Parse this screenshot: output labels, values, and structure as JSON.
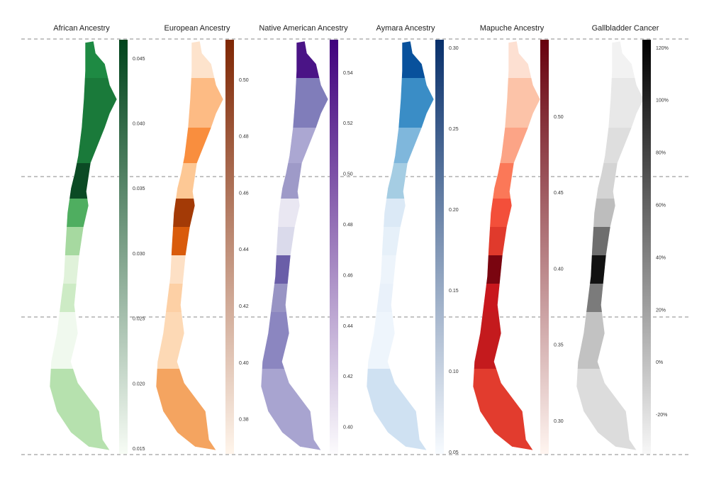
{
  "panels": [
    {
      "title": "African Ancestry",
      "ticks": [
        "0.045",
        "0.040",
        "0.035",
        "0.030",
        "0.025",
        "0.020",
        "0.015"
      ]
    },
    {
      "title": "European Ancestry",
      "ticks": [
        "0.50",
        "0.48",
        "0.46",
        "0.44",
        "0.42",
        "0.40",
        "0.38"
      ]
    },
    {
      "title": "Native American Ancestry",
      "ticks": [
        "0.54",
        "0.52",
        "0.50",
        "0.48",
        "0.46",
        "0.44",
        "0.42",
        "0.40"
      ]
    },
    {
      "title": "Aymara Ancestry",
      "ticks": [
        "0.30",
        "0.25",
        "0.20",
        "0.15",
        "0.10",
        "0.05"
      ]
    },
    {
      "title": "Mapuche Ancestry",
      "ticks": [
        "0.50",
        "0.45",
        "0.40",
        "0.35",
        "0.30"
      ]
    },
    {
      "title": "Gallbladder Cancer",
      "ticks": [
        "120%",
        "100%",
        "80%",
        "60%",
        "40%",
        "20%",
        "0%",
        "-20%"
      ]
    }
  ]
}
